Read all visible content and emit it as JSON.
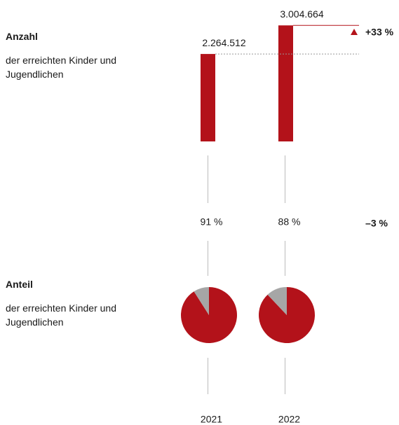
{
  "chart_data": [
    {
      "type": "bar",
      "title": "Anzahl",
      "subtitle": "der erreichten Kinder und Jugendlichen",
      "categories": [
        "2021",
        "2022"
      ],
      "values": [
        2264512,
        3004664
      ],
      "value_labels": [
        "2.264.512",
        "3.004.664"
      ],
      "ylim": [
        0,
        3100000
      ],
      "color": "#b3121a",
      "annotation": "+33 %"
    },
    {
      "type": "pie",
      "title": "Anteil",
      "subtitle": "der erreichten Kinder und Jugendlichen",
      "values": [
        91,
        88
      ],
      "value_labels": [
        "91 %",
        "88 %"
      ],
      "color": "#b3121a",
      "rest_color": "#a6a6a6",
      "annotation": "–3 %"
    }
  ]
}
